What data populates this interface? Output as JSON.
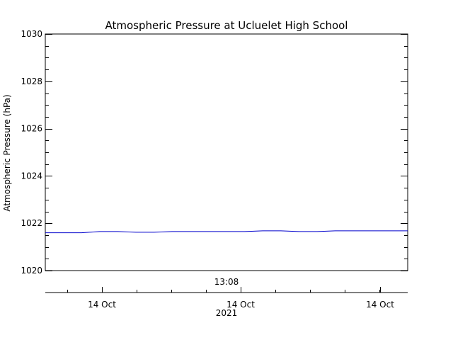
{
  "chart_data": {
    "type": "line",
    "title": "Atmospheric Pressure at Ucluelet High School",
    "ylabel": "Atmospheric Pressure (hPa)",
    "xlabel": "",
    "ylim": [
      1020,
      1030
    ],
    "y_ticks": [
      "1020",
      "1022",
      "1024",
      "1026",
      "1028",
      "1030"
    ],
    "y_tick_values": [
      1020,
      1022,
      1024,
      1026,
      1028,
      1030
    ],
    "y_minor_step": 0.5,
    "time_label": "13:08",
    "x_date_ticks": [
      "14 Oct",
      "14 Oct",
      "14 Oct"
    ],
    "x_year_label": "2021",
    "grid": false,
    "legend": "none",
    "line_color": "#0000cc",
    "series": [
      {
        "values": [
          1021.6,
          1021.6,
          1021.6,
          1021.65,
          1021.65,
          1021.62,
          1021.62,
          1021.65,
          1021.65,
          1021.65,
          1021.65,
          1021.65,
          1021.68,
          1021.68,
          1021.65,
          1021.65,
          1021.68,
          1021.68,
          1021.68,
          1021.68,
          1021.68
        ]
      }
    ]
  }
}
